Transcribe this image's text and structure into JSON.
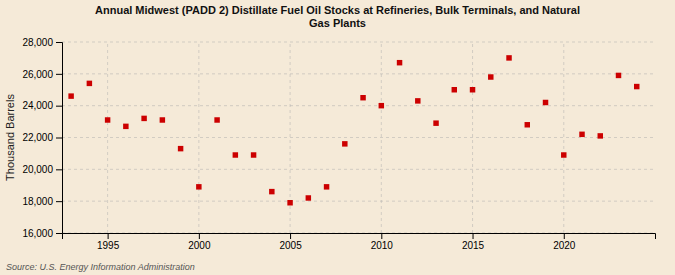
{
  "chart_data": {
    "type": "scatter",
    "title": "Annual Midwest (PADD 2) Distillate Fuel Oil Stocks at Refineries, Bulk Terminals, and Natural\nGas Plants",
    "y_label": "Thousand Barrels",
    "annotations": [
      "Source: U.S. Energy Information Administration"
    ],
    "x": [
      1993,
      1994,
      1995,
      1996,
      1997,
      1998,
      1999,
      2000,
      2001,
      2002,
      2003,
      2004,
      2005,
      2006,
      2007,
      2008,
      2009,
      2010,
      2011,
      2012,
      2013,
      2014,
      2015,
      2016,
      2017,
      2018,
      2019,
      2020,
      2021,
      2022,
      2023,
      2024
    ],
    "values": [
      24600,
      25400,
      23100,
      22700,
      23200,
      23100,
      21300,
      18900,
      23100,
      20900,
      20900,
      18600,
      17900,
      18200,
      18900,
      21600,
      24500,
      24000,
      26700,
      24300,
      22900,
      25000,
      25000,
      25800,
      27000,
      22800,
      24200,
      20900,
      22200,
      22100,
      25900,
      25200
    ],
    "color": "#cc0000",
    "marker": "square",
    "xlim": [
      1992.5,
      2025
    ],
    "xticks": [
      1995,
      2000,
      2005,
      2010,
      2015,
      2020
    ],
    "ylim": [
      16000,
      28000
    ],
    "yticks": [
      {
        "value": 16000,
        "label": "16,000"
      },
      {
        "value": 18000,
        "label": "18,000"
      },
      {
        "value": 20000,
        "label": "20,000"
      },
      {
        "value": 22000,
        "label": "22,000"
      },
      {
        "value": 24000,
        "label": "24,000"
      },
      {
        "value": 26000,
        "label": "26,000"
      },
      {
        "value": 28000,
        "label": "28,000"
      }
    ],
    "grid": true
  }
}
